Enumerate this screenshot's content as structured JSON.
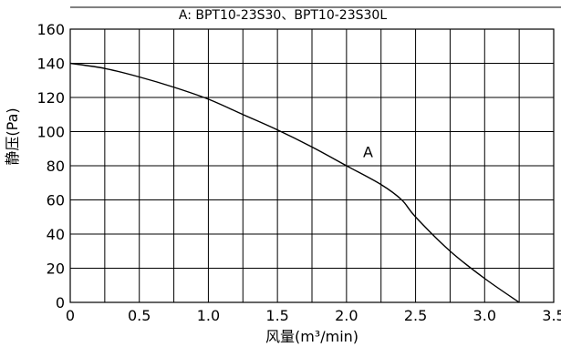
{
  "chart_data": {
    "type": "line",
    "title": "A: BPT10-23S30、BPT10-23S30L",
    "xlabel": "风量(m³/min)",
    "ylabel": "静压(Pa)",
    "xlim": [
      0,
      3.5
    ],
    "ylim": [
      0,
      160
    ],
    "x_ticks": [
      "0",
      "0.5",
      "1.0",
      "1.5",
      "2.0",
      "2.5",
      "3.0",
      "3.5"
    ],
    "y_ticks": [
      "0",
      "20",
      "40",
      "60",
      "80",
      "100",
      "120",
      "140",
      "160"
    ],
    "x_tick_values": [
      0,
      0.5,
      1.0,
      1.5,
      2.0,
      2.5,
      3.0,
      3.5
    ],
    "y_tick_values": [
      0,
      20,
      40,
      60,
      80,
      100,
      120,
      140,
      160
    ],
    "grid_x_step": 0.25,
    "grid_y_step": 20,
    "grid": true,
    "annotations": [
      {
        "text": "A",
        "x": 2.1,
        "y": 84
      }
    ],
    "series": [
      {
        "x": [
          0,
          0.25,
          0.5,
          0.75,
          1.0,
          1.25,
          1.5,
          1.75,
          2.0,
          2.25,
          2.4,
          2.5,
          2.75,
          3.0,
          3.25
        ],
        "y": [
          140,
          137,
          132,
          126,
          119,
          110,
          101,
          91,
          80,
          69,
          60,
          50,
          30,
          14,
          0
        ]
      }
    ]
  }
}
